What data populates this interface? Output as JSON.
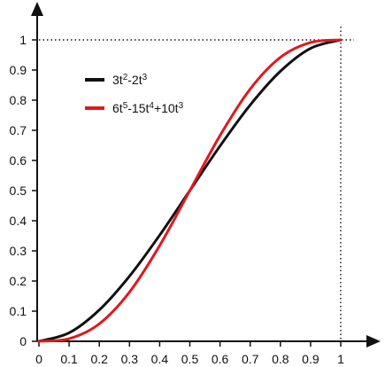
{
  "chart_data": {
    "type": "line",
    "x_range": [
      0,
      1
    ],
    "y_range": [
      0,
      1
    ],
    "x_ticks": [
      "0",
      "0.1",
      "0.2",
      "0.3",
      "0.4",
      "0.5",
      "0.6",
      "0.7",
      "0.8",
      "0.9",
      "1"
    ],
    "y_ticks": [
      "0",
      "0.1",
      "0.2",
      "0.3",
      "0.4",
      "0.5",
      "0.6",
      "0.7",
      "0.8",
      "0.9",
      "1"
    ],
    "reference_lines": [
      {
        "style": "dotted",
        "at": "y = 1"
      },
      {
        "style": "dotted",
        "at": "x = 1"
      }
    ],
    "grid": false,
    "legend_position": "top-left",
    "series": [
      {
        "name": "3t²-2t³",
        "legend_parts": [
          {
            "text": "3t",
            "sup": false
          },
          {
            "text": "2",
            "sup": true
          },
          {
            "text": "-2t",
            "sup": false
          },
          {
            "text": "3",
            "sup": true
          }
        ],
        "color": "#111111",
        "x": [
          0,
          0.1,
          0.2,
          0.3,
          0.4,
          0.5,
          0.6,
          0.7,
          0.8,
          0.9,
          1
        ],
        "y": [
          0,
          0.028,
          0.104,
          0.216,
          0.352,
          0.5,
          0.648,
          0.784,
          0.896,
          0.972,
          1
        ]
      },
      {
        "name": "6t⁵-15t⁴+10t³",
        "legend_parts": [
          {
            "text": "6t",
            "sup": false
          },
          {
            "text": "5",
            "sup": true
          },
          {
            "text": "-15t",
            "sup": false
          },
          {
            "text": "4",
            "sup": true
          },
          {
            "text": "+10t",
            "sup": false
          },
          {
            "text": "3",
            "sup": true
          }
        ],
        "color": "#e0191f",
        "x": [
          0,
          0.1,
          0.2,
          0.3,
          0.4,
          0.5,
          0.6,
          0.7,
          0.8,
          0.9,
          1
        ],
        "y": [
          0,
          0.00856,
          0.05792,
          0.16308,
          0.31744,
          0.5,
          0.68256,
          0.83692,
          0.94208,
          0.99144,
          1
        ]
      }
    ]
  }
}
